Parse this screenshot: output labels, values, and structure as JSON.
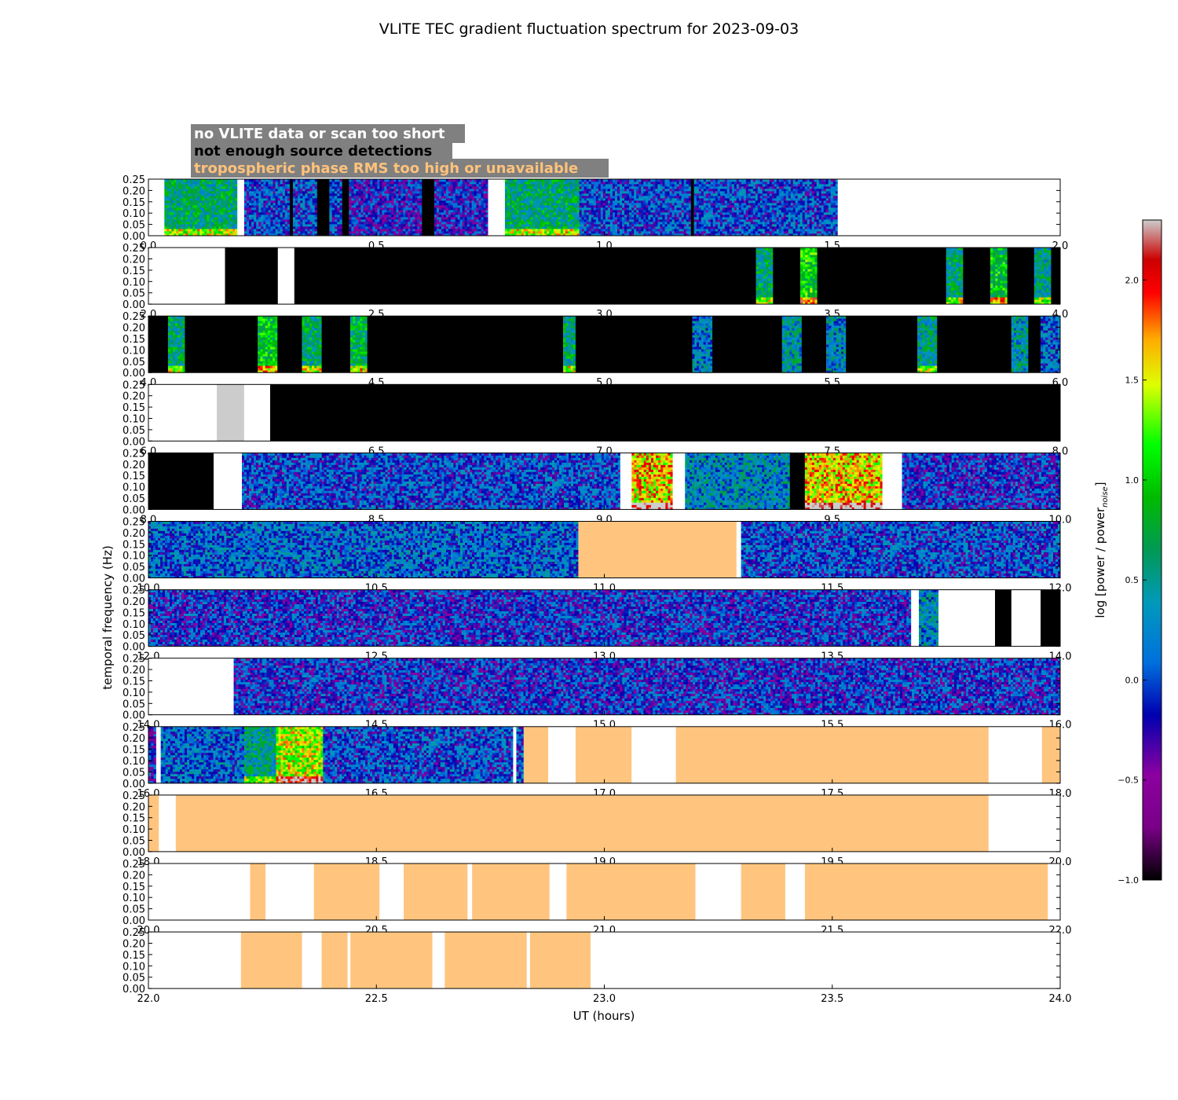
{
  "figure": {
    "title": "VLITE TEC gradient fluctuation spectrum for 2023-09-03",
    "xlabel": "UT (hours)",
    "ylabel": "temporal frequency (Hz)",
    "colorbar_label": "log [power / power",
    "colorbar_label_sub": "noise",
    "colorbar_label_end": "]"
  },
  "legend": [
    {
      "label": "no VLITE data or scan too short",
      "text_color": "#ffffff",
      "bg": "#808080"
    },
    {
      "label": "not enough source detections",
      "text_color": "#000000",
      "bg": "#808080"
    },
    {
      "label": "tropospheric phase RMS too high or unavailable",
      "text_color": "#ffc27a",
      "bg": "#808080"
    }
  ],
  "colors": {
    "nodata": "#ffffff",
    "not_enough_detections": "#000000",
    "tropo_flag": "#ffc57e",
    "saturated": "#cccccc"
  },
  "chart_data": {
    "type": "heatmap",
    "ylim": [
      0,
      0.25
    ],
    "yticks": [
      "0.00",
      "0.05",
      "0.10",
      "0.15",
      "0.20",
      "0.25"
    ],
    "colorbar": {
      "range": [
        -1.0,
        2.3
      ],
      "ticks": [
        "−1.0",
        "−0.5",
        "0.0",
        "0.5",
        "1.0",
        "1.5",
        "2.0"
      ],
      "colormap": "spectral"
    },
    "panels": [
      {
        "xlim": [
          0,
          2
        ],
        "xticks": [
          "0.0",
          "0.5",
          "1.0",
          "1.5",
          "2.0"
        ],
        "segments": [
          {
            "start": 0.0,
            "end": 0.035,
            "status": "nodata"
          },
          {
            "start": 0.035,
            "end": 0.195,
            "status": "data",
            "level": 0.6
          },
          {
            "start": 0.195,
            "end": 0.21,
            "status": "nodata"
          },
          {
            "start": 0.21,
            "end": 0.31,
            "status": "data",
            "level": 0.0
          },
          {
            "start": 0.31,
            "end": 0.317,
            "status": "detections"
          },
          {
            "start": 0.317,
            "end": 0.37,
            "status": "data",
            "level": 0.0
          },
          {
            "start": 0.37,
            "end": 0.397,
            "status": "detections"
          },
          {
            "start": 0.397,
            "end": 0.425,
            "status": "data",
            "level": 0.0
          },
          {
            "start": 0.425,
            "end": 0.44,
            "status": "detections"
          },
          {
            "start": 0.44,
            "end": 0.6,
            "status": "data",
            "level": -0.2
          },
          {
            "start": 0.6,
            "end": 0.627,
            "status": "detections"
          },
          {
            "start": 0.627,
            "end": 0.745,
            "status": "data",
            "level": -0.2
          },
          {
            "start": 0.745,
            "end": 0.782,
            "status": "nodata"
          },
          {
            "start": 0.782,
            "end": 0.945,
            "status": "data",
            "level": 0.6
          },
          {
            "start": 0.945,
            "end": 1.19,
            "status": "data",
            "level": 0.0
          },
          {
            "start": 1.19,
            "end": 1.197,
            "status": "detections"
          },
          {
            "start": 1.197,
            "end": 1.512,
            "status": "data",
            "level": 0.0
          },
          {
            "start": 1.512,
            "end": 2.0,
            "status": "nodata"
          }
        ]
      },
      {
        "xlim": [
          2,
          4
        ],
        "xticks": [
          "2.0",
          "2.5",
          "3.0",
          "3.5",
          "4.0"
        ],
        "segments": [
          {
            "start": 2.0,
            "end": 2.168,
            "status": "nodata"
          },
          {
            "start": 2.168,
            "end": 2.284,
            "status": "detections"
          },
          {
            "start": 2.284,
            "end": 2.32,
            "status": "nodata"
          },
          {
            "start": 2.32,
            "end": 3.333,
            "status": "detections"
          },
          {
            "start": 3.333,
            "end": 3.37,
            "status": "data",
            "level": 0.6
          },
          {
            "start": 3.37,
            "end": 3.43,
            "status": "detections"
          },
          {
            "start": 3.43,
            "end": 3.467,
            "status": "data",
            "level": 1.0
          },
          {
            "start": 3.467,
            "end": 3.75,
            "status": "detections"
          },
          {
            "start": 3.75,
            "end": 3.787,
            "status": "data",
            "level": 0.6
          },
          {
            "start": 3.787,
            "end": 3.847,
            "status": "detections"
          },
          {
            "start": 3.847,
            "end": 3.884,
            "status": "data",
            "level": 0.9
          },
          {
            "start": 3.884,
            "end": 3.943,
            "status": "detections"
          },
          {
            "start": 3.943,
            "end": 3.98,
            "status": "data",
            "level": 0.5
          },
          {
            "start": 3.98,
            "end": 4.0,
            "status": "detections"
          }
        ]
      },
      {
        "xlim": [
          4,
          6
        ],
        "xticks": [
          "4.0",
          "4.5",
          "5.0",
          "5.5",
          "6.0"
        ],
        "segments": [
          {
            "start": 4.0,
            "end": 4.043,
            "status": "detections"
          },
          {
            "start": 4.043,
            "end": 4.08,
            "status": "data",
            "level": 0.6
          },
          {
            "start": 4.08,
            "end": 4.24,
            "status": "detections"
          },
          {
            "start": 4.24,
            "end": 4.283,
            "status": "data",
            "level": 0.9
          },
          {
            "start": 4.283,
            "end": 4.337,
            "status": "detections"
          },
          {
            "start": 4.337,
            "end": 4.38,
            "status": "data",
            "level": 0.6
          },
          {
            "start": 4.38,
            "end": 4.443,
            "status": "detections"
          },
          {
            "start": 4.443,
            "end": 4.48,
            "status": "data",
            "level": 0.7
          },
          {
            "start": 4.48,
            "end": 4.91,
            "status": "detections"
          },
          {
            "start": 4.91,
            "end": 4.937,
            "status": "data",
            "level": 0.6
          },
          {
            "start": 4.937,
            "end": 5.193,
            "status": "detections"
          },
          {
            "start": 5.193,
            "end": 5.237,
            "status": "data",
            "level": 0.2
          },
          {
            "start": 5.237,
            "end": 5.39,
            "status": "detections"
          },
          {
            "start": 5.39,
            "end": 5.433,
            "status": "data",
            "level": 0.4
          },
          {
            "start": 5.433,
            "end": 5.487,
            "status": "detections"
          },
          {
            "start": 5.487,
            "end": 5.53,
            "status": "data",
            "level": 0.3
          },
          {
            "start": 5.53,
            "end": 5.687,
            "status": "detections"
          },
          {
            "start": 5.687,
            "end": 5.73,
            "status": "data",
            "level": 0.5
          },
          {
            "start": 5.73,
            "end": 5.893,
            "status": "detections"
          },
          {
            "start": 5.893,
            "end": 5.93,
            "status": "data",
            "level": 0.4
          },
          {
            "start": 5.93,
            "end": 5.957,
            "status": "detections"
          },
          {
            "start": 5.957,
            "end": 6.0,
            "status": "data",
            "level": 0.1
          }
        ]
      },
      {
        "xlim": [
          6,
          8
        ],
        "xticks": [
          "6.0",
          "6.5",
          "7.0",
          "7.5",
          "8.0"
        ],
        "segments": [
          {
            "start": 6.0,
            "end": 6.15,
            "status": "nodata"
          },
          {
            "start": 6.15,
            "end": 6.21,
            "status": "saturated"
          },
          {
            "start": 6.21,
            "end": 6.267,
            "status": "nodata"
          },
          {
            "start": 6.267,
            "end": 8.0,
            "status": "detections"
          }
        ]
      },
      {
        "xlim": [
          8,
          10
        ],
        "xticks": [
          "8.0",
          "8.5",
          "9.0",
          "9.5",
          "10.0"
        ],
        "segments": [
          {
            "start": 8.0,
            "end": 8.143,
            "status": "detections"
          },
          {
            "start": 8.143,
            "end": 8.205,
            "status": "nodata"
          },
          {
            "start": 8.205,
            "end": 9.035,
            "status": "data",
            "level": 0.0
          },
          {
            "start": 9.035,
            "end": 9.06,
            "status": "nodata"
          },
          {
            "start": 9.06,
            "end": 9.15,
            "status": "data",
            "level": 1.6
          },
          {
            "start": 9.15,
            "end": 9.177,
            "status": "nodata"
          },
          {
            "start": 9.177,
            "end": 9.407,
            "status": "data",
            "level": 0.3
          },
          {
            "start": 9.407,
            "end": 9.44,
            "status": "detections"
          },
          {
            "start": 9.44,
            "end": 9.61,
            "status": "data",
            "level": 1.6
          },
          {
            "start": 9.61,
            "end": 9.653,
            "status": "nodata"
          },
          {
            "start": 9.653,
            "end": 10.0,
            "status": "data",
            "level": -0.1
          }
        ]
      },
      {
        "xlim": [
          10,
          12
        ],
        "xticks": [
          "10.0",
          "10.5",
          "11.0",
          "11.5",
          "12.0"
        ],
        "segments": [
          {
            "start": 10.0,
            "end": 10.943,
            "status": "data",
            "level": 0.1
          },
          {
            "start": 10.943,
            "end": 11.29,
            "status": "tropo"
          },
          {
            "start": 11.29,
            "end": 11.3,
            "status": "nodata"
          },
          {
            "start": 11.3,
            "end": 12.0,
            "status": "data",
            "level": 0.0
          }
        ]
      },
      {
        "xlim": [
          12,
          14
        ],
        "xticks": [
          "12.0",
          "12.5",
          "13.0",
          "13.5",
          "14.0"
        ],
        "segments": [
          {
            "start": 12.0,
            "end": 13.673,
            "status": "data",
            "level": -0.1
          },
          {
            "start": 13.673,
            "end": 13.69,
            "status": "nodata"
          },
          {
            "start": 13.69,
            "end": 13.733,
            "status": "data",
            "level": 0.3
          },
          {
            "start": 13.733,
            "end": 13.857,
            "status": "nodata"
          },
          {
            "start": 13.857,
            "end": 13.893,
            "status": "detections"
          },
          {
            "start": 13.893,
            "end": 13.957,
            "status": "nodata"
          },
          {
            "start": 13.957,
            "end": 14.0,
            "status": "detections"
          }
        ]
      },
      {
        "xlim": [
          14,
          16
        ],
        "xticks": [
          "14.0",
          "14.5",
          "15.0",
          "15.5",
          "16.0"
        ],
        "segments": [
          {
            "start": 14.0,
            "end": 14.187,
            "status": "nodata"
          },
          {
            "start": 14.187,
            "end": 16.0,
            "status": "data",
            "level": -0.1
          }
        ]
      },
      {
        "xlim": [
          16,
          18
        ],
        "xticks": [
          "16.0",
          "16.5",
          "17.0",
          "17.5",
          "18.0"
        ],
        "segments": [
          {
            "start": 16.0,
            "end": 16.017,
            "status": "data",
            "level": -0.2
          },
          {
            "start": 16.017,
            "end": 16.027,
            "status": "nodata"
          },
          {
            "start": 16.027,
            "end": 16.21,
            "status": "data",
            "level": 0.1
          },
          {
            "start": 16.21,
            "end": 16.28,
            "status": "data",
            "level": 0.5
          },
          {
            "start": 16.28,
            "end": 16.383,
            "status": "data",
            "level": 1.4
          },
          {
            "start": 16.383,
            "end": 16.8,
            "status": "data",
            "level": 0.0
          },
          {
            "start": 16.8,
            "end": 16.807,
            "status": "nodata"
          },
          {
            "start": 16.807,
            "end": 16.823,
            "status": "data",
            "level": 0.0
          },
          {
            "start": 16.823,
            "end": 16.877,
            "status": "tropo"
          },
          {
            "start": 16.877,
            "end": 16.937,
            "status": "nodata"
          },
          {
            "start": 16.937,
            "end": 17.06,
            "status": "tropo"
          },
          {
            "start": 17.06,
            "end": 17.157,
            "status": "nodata"
          },
          {
            "start": 17.157,
            "end": 17.843,
            "status": "tropo"
          },
          {
            "start": 17.843,
            "end": 17.96,
            "status": "nodata"
          },
          {
            "start": 17.96,
            "end": 18.0,
            "status": "tropo"
          }
        ]
      },
      {
        "xlim": [
          18,
          20
        ],
        "xticks": [
          "18.0",
          "18.5",
          "19.0",
          "19.5",
          "20.0"
        ],
        "segments": [
          {
            "start": 18.0,
            "end": 18.023,
            "status": "tropo"
          },
          {
            "start": 18.023,
            "end": 18.06,
            "status": "nodata"
          },
          {
            "start": 18.06,
            "end": 19.843,
            "status": "tropo"
          },
          {
            "start": 19.843,
            "end": 20.0,
            "status": "nodata"
          }
        ]
      },
      {
        "xlim": [
          20,
          22
        ],
        "xticks": [
          "20.0",
          "20.5",
          "21.0",
          "21.5",
          "22.0"
        ],
        "segments": [
          {
            "start": 20.0,
            "end": 20.223,
            "status": "nodata"
          },
          {
            "start": 20.223,
            "end": 20.257,
            "status": "tropo"
          },
          {
            "start": 20.257,
            "end": 20.363,
            "status": "nodata"
          },
          {
            "start": 20.363,
            "end": 20.507,
            "status": "tropo"
          },
          {
            "start": 20.507,
            "end": 20.56,
            "status": "nodata"
          },
          {
            "start": 20.56,
            "end": 20.7,
            "status": "tropo"
          },
          {
            "start": 20.7,
            "end": 20.71,
            "status": "nodata"
          },
          {
            "start": 20.71,
            "end": 20.88,
            "status": "tropo"
          },
          {
            "start": 20.88,
            "end": 20.917,
            "status": "nodata"
          },
          {
            "start": 20.917,
            "end": 21.2,
            "status": "tropo"
          },
          {
            "start": 21.2,
            "end": 21.3,
            "status": "nodata"
          },
          {
            "start": 21.3,
            "end": 21.397,
            "status": "tropo"
          },
          {
            "start": 21.397,
            "end": 21.44,
            "status": "nodata"
          },
          {
            "start": 21.44,
            "end": 21.973,
            "status": "tropo"
          },
          {
            "start": 21.973,
            "end": 22.0,
            "status": "nodata"
          }
        ]
      },
      {
        "xlim": [
          22,
          24
        ],
        "xticks": [
          "22.0",
          "22.5",
          "23.0",
          "23.5",
          "24.0"
        ],
        "segments": [
          {
            "start": 22.0,
            "end": 22.203,
            "status": "nodata"
          },
          {
            "start": 22.203,
            "end": 22.337,
            "status": "tropo"
          },
          {
            "start": 22.337,
            "end": 22.38,
            "status": "nodata"
          },
          {
            "start": 22.38,
            "end": 22.437,
            "status": "tropo"
          },
          {
            "start": 22.437,
            "end": 22.443,
            "status": "nodata"
          },
          {
            "start": 22.443,
            "end": 22.623,
            "status": "tropo"
          },
          {
            "start": 22.623,
            "end": 22.65,
            "status": "nodata"
          },
          {
            "start": 22.65,
            "end": 22.83,
            "status": "tropo"
          },
          {
            "start": 22.83,
            "end": 22.837,
            "status": "nodata"
          },
          {
            "start": 22.837,
            "end": 22.97,
            "status": "tropo"
          },
          {
            "start": 22.97,
            "end": 24.0,
            "status": "nodata"
          }
        ]
      }
    ]
  }
}
